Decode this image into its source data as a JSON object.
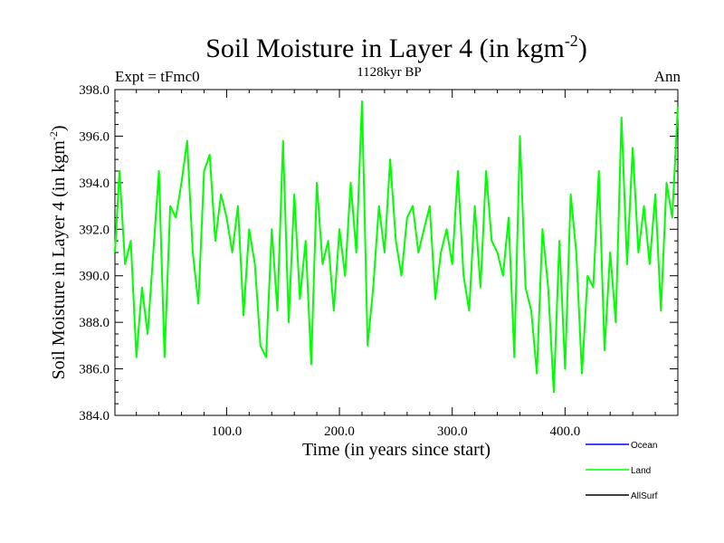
{
  "chart_data": {
    "type": "line",
    "title": "Soil Moisture in Layer 4 (in kgm",
    "title_sup": "-2",
    "title_suffix": ")",
    "subtitle": "1128kyr BP",
    "left_label": "Expt = tFmc0",
    "right_label": "Ann",
    "xlabel": "Time (in years since start)",
    "ylabel": "Soil Moisture in Layer 4 (in kgm",
    "ylabel_sup": "-2",
    "ylabel_suffix": ")",
    "xlim": [
      1,
      500
    ],
    "ylim": [
      384.0,
      398.0
    ],
    "x_ticks": [
      {
        "value": 100,
        "label": "100.0"
      },
      {
        "value": 200,
        "label": "200.0"
      },
      {
        "value": 300,
        "label": "300.0"
      },
      {
        "value": 400,
        "label": "400.0"
      }
    ],
    "y_ticks": [
      {
        "value": 384,
        "label": "384.0"
      },
      {
        "value": 386,
        "label": "386.0"
      },
      {
        "value": 388,
        "label": "388.0"
      },
      {
        "value": 390,
        "label": "390.0"
      },
      {
        "value": 392,
        "label": "392.0"
      },
      {
        "value": 394,
        "label": "394.0"
      },
      {
        "value": 396,
        "label": "396.0"
      },
      {
        "value": 398,
        "label": "398.0"
      }
    ],
    "legend": [
      {
        "name": "Ocean",
        "color": "#0000ff"
      },
      {
        "name": "Land",
        "color": "#00ff00"
      },
      {
        "name": "AllSurf",
        "color": "#000000"
      }
    ],
    "series": [
      {
        "name": "Land",
        "color": "#00ff00",
        "x": [
          1,
          5,
          10,
          15,
          20,
          25,
          30,
          35,
          40,
          45,
          50,
          55,
          60,
          65,
          70,
          75,
          80,
          85,
          90,
          95,
          100,
          105,
          110,
          115,
          120,
          125,
          130,
          135,
          140,
          145,
          150,
          155,
          160,
          165,
          170,
          175,
          180,
          185,
          190,
          195,
          200,
          205,
          210,
          215,
          220,
          225,
          230,
          235,
          240,
          245,
          250,
          255,
          260,
          265,
          270,
          275,
          280,
          285,
          290,
          295,
          300,
          305,
          310,
          315,
          320,
          325,
          330,
          335,
          340,
          345,
          350,
          355,
          360,
          365,
          370,
          375,
          380,
          385,
          390,
          395,
          400,
          405,
          410,
          415,
          420,
          425,
          430,
          435,
          440,
          445,
          450,
          455,
          460,
          465,
          470,
          475,
          480,
          485,
          490,
          495,
          500
        ],
        "values": [
          391.0,
          394.5,
          390.5,
          391.5,
          386.5,
          389.5,
          387.5,
          391.0,
          394.5,
          386.5,
          393.0,
          392.5,
          394.0,
          395.8,
          391.0,
          388.8,
          394.5,
          395.2,
          391.5,
          393.5,
          392.5,
          391.0,
          393.0,
          388.3,
          392.0,
          390.5,
          387.0,
          386.5,
          392.0,
          388.5,
          395.8,
          388.0,
          393.5,
          389.0,
          391.5,
          386.2,
          394.0,
          390.5,
          391.5,
          388.5,
          392.0,
          390.0,
          394.0,
          391.0,
          397.5,
          387.0,
          389.5,
          393.0,
          391.0,
          395.0,
          391.5,
          390.0,
          392.5,
          393.0,
          391.0,
          392.0,
          393.0,
          389.0,
          391.0,
          392.0,
          390.5,
          394.5,
          390.0,
          388.5,
          393.0,
          389.5,
          394.5,
          391.5,
          391.0,
          390.0,
          392.5,
          386.5,
          396.0,
          389.5,
          388.5,
          385.8,
          392.0,
          389.5,
          385.0,
          391.5,
          386.0,
          393.5,
          391.0,
          385.8,
          390.0,
          389.5,
          394.5,
          386.8,
          391.0,
          388.0,
          396.8,
          390.5,
          395.5,
          391.0,
          393.0,
          390.5,
          393.5,
          388.5,
          394.0,
          392.5,
          397.3
        ]
      }
    ]
  }
}
